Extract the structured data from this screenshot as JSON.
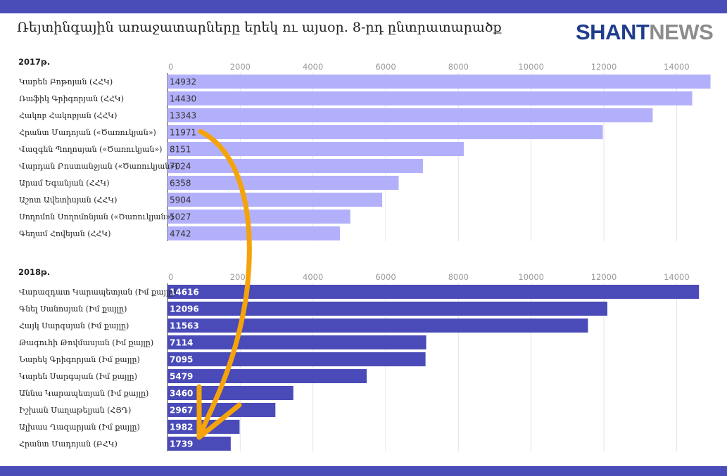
{
  "header": {
    "title": "Ռեյտինգային առաջատարները երեկ ու այսօր. 8-րդ ընտրատարածք",
    "logo_part1": "SHANT",
    "logo_part2": "NEWS",
    "band_color": "#4a4db8"
  },
  "colors": {
    "bar_2017": "#b3b0fb",
    "bar_2018": "#4a4bb8",
    "arrow": "#f5a30a",
    "logo_blue": "#1f3d8c",
    "logo_gray": "#8c8c8c"
  },
  "chart_data": [
    {
      "type": "bar",
      "orientation": "horizontal",
      "title": "2017թ.",
      "xlim": [
        0,
        15000
      ],
      "ticks": [
        0,
        2000,
        4000,
        6000,
        8000,
        10000,
        12000,
        14000
      ],
      "grid": true,
      "categories": [
        "Կարեն Բոթոյան (ՀՀԿ)",
        "Ռաֆիկ Գրիգորյան (ՀՀԿ)",
        "Հակոբ Հակոբյան (ՀՀԿ)",
        "Հրանտ Մադոյան («Ծառուկյան»)",
        "Վազգեն Պողոսյան («Ծառուկյան»)",
        "Վարդան Բոստանջյան («Ծառուկյան»)",
        "Արամ Եգանյան (ՀՀԿ)",
        "Աշոտ Ավետիսյան (ՀՀԿ)",
        "Սողոմոն Սողոմոնյան («Ծառուկյան»)",
        "Գեղամ Հովեյան (ՀՀԿ)"
      ],
      "values": [
        14932,
        14430,
        13343,
        11971,
        8151,
        7024,
        6358,
        5904,
        5027,
        4742
      ]
    },
    {
      "type": "bar",
      "orientation": "horizontal",
      "title": "2018թ.",
      "xlim": [
        0,
        15000
      ],
      "ticks": [
        0,
        2000,
        4000,
        6000,
        8000,
        10000,
        12000,
        14000
      ],
      "grid": true,
      "categories": [
        "Վարազդատ Կարապետյան (Իմ քայլը)",
        "Գնել Սանոսյան (Իմ քայլը)",
        "Հայկ Սարգսյան (Իմ քայլը)",
        "Թագուհի Թովմասյան (Իմ քայլը)",
        "Նարեկ Գրիգորյան (Իմ քայլը)",
        "Կարեն Սարգսյան (Իմ քայլը)",
        "Աննա Կարապետյան (Իմ քայլը)",
        "Իշխան Սաղաթելյան (ՀՅԴ)",
        "Ալխաս Ղազարյան (Իմ քայլը)",
        "Հրանտ Մադոյան (ԲՀԿ)"
      ],
      "values": [
        14616,
        12096,
        11563,
        7114,
        7095,
        5479,
        3460,
        2967,
        1982,
        1739
      ]
    }
  ]
}
